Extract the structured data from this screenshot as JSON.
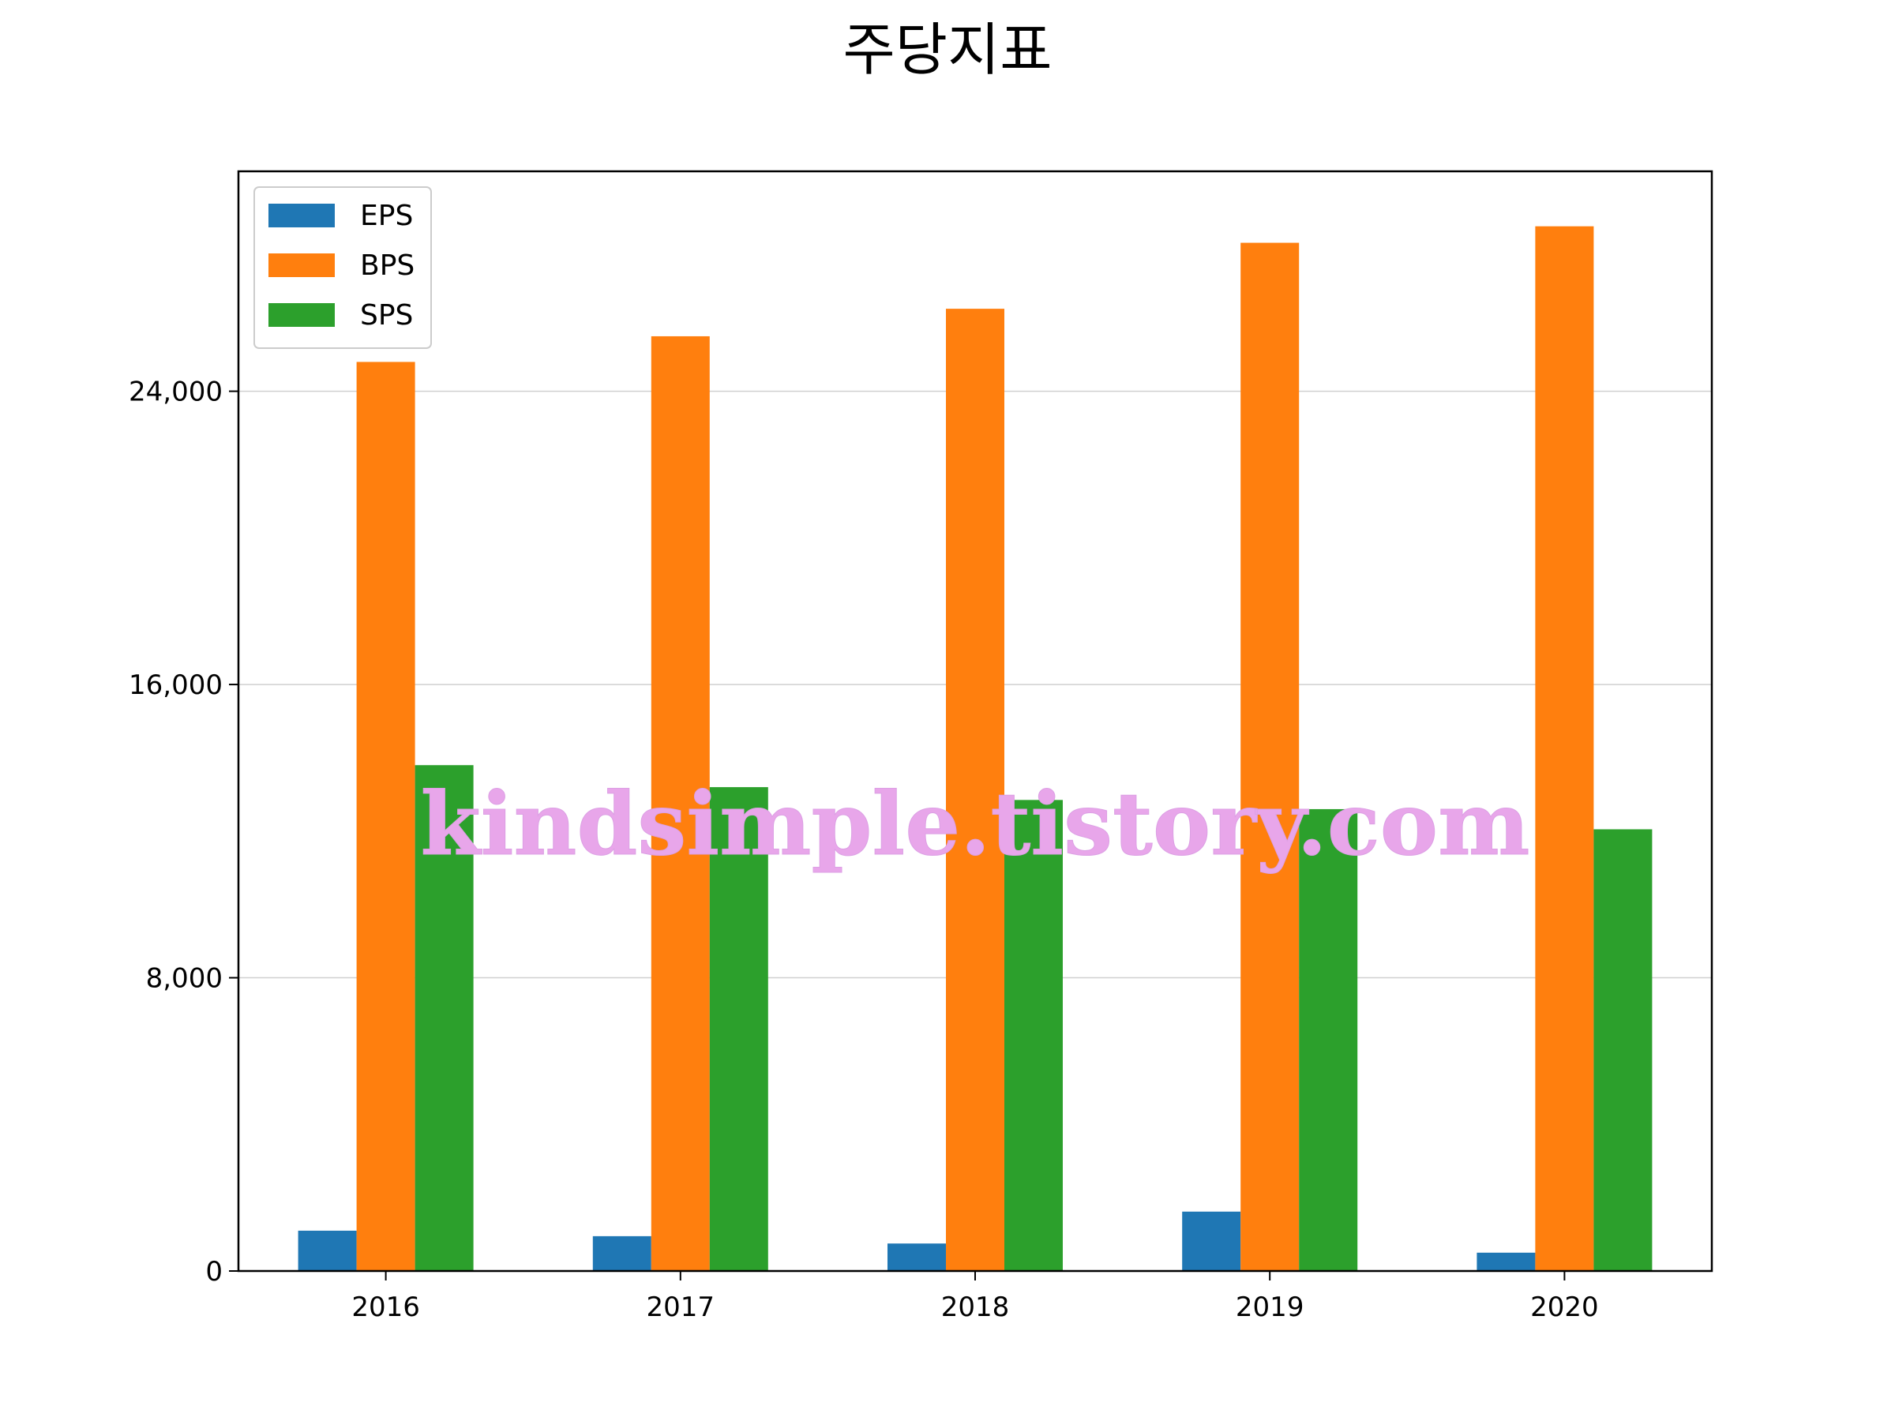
{
  "chart_data": {
    "type": "bar",
    "title": "주당지표",
    "xlabel": "",
    "ylabel": "",
    "categories": [
      "2016",
      "2017",
      "2018",
      "2019",
      "2020"
    ],
    "series": [
      {
        "name": "EPS",
        "color": "#1f77b4",
        "values": [
          1100,
          950,
          750,
          1620,
          500
        ]
      },
      {
        "name": "BPS",
        "color": "#ff7f0e",
        "values": [
          24800,
          25500,
          26250,
          28050,
          28500
        ]
      },
      {
        "name": "SPS",
        "color": "#2ca02c",
        "values": [
          13800,
          13200,
          12850,
          12600,
          12050
        ]
      }
    ],
    "ylim": [
      0,
      30000
    ],
    "yticks": [
      0,
      8000,
      16000,
      24000
    ],
    "ytick_labels": [
      "0",
      "8,000",
      "16,000",
      "24,000"
    ],
    "grid": "y",
    "legend_position": "upper-left"
  },
  "watermark": "kindsimple.tistory.com"
}
